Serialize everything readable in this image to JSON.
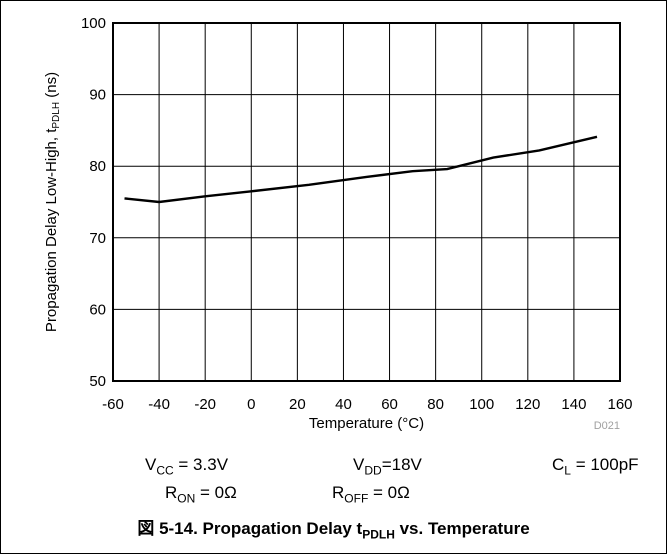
{
  "chart_data": {
    "type": "line",
    "xlabel": "Temperature (°C)",
    "ylabel_main": "Propagation Delay Low-High, t",
    "ylabel_sub": "PDLH",
    "ylabel_unit": " (ns)",
    "xlim": [
      -60,
      160
    ],
    "ylim": [
      50,
      100
    ],
    "xticks": [
      -60,
      -40,
      -20,
      0,
      20,
      40,
      60,
      80,
      100,
      120,
      140,
      160
    ],
    "yticks": [
      50,
      60,
      70,
      80,
      90,
      100
    ],
    "grid": true,
    "watermark": "D021",
    "series": [
      {
        "x": [
          -55,
          -40,
          -20,
          0,
          25,
          50,
          70,
          85,
          105,
          125,
          150
        ],
        "y": [
          75.5,
          75,
          75.8,
          76.5,
          77.4,
          78.5,
          79.3,
          79.6,
          81.2,
          82.2,
          84.1
        ]
      }
    ]
  },
  "conditions": {
    "vcc": {
      "prefix": "V",
      "sub": "CC",
      "suffix": " = 3.3V"
    },
    "vdd": {
      "prefix": "V",
      "sub": "DD",
      "suffix": "=18V"
    },
    "cl": {
      "prefix": "C",
      "sub": "L",
      "suffix": " = 100pF"
    },
    "ron": {
      "prefix": "R",
      "sub": "ON",
      "suffix": " = 0Ω"
    },
    "roff": {
      "prefix": "R",
      "sub": "OFF",
      "suffix": " = 0Ω"
    }
  },
  "caption": {
    "prefix": "図 5-14. Propagation Delay t",
    "sub": "PDLH",
    "suffix": " vs. Temperature"
  },
  "colors": {
    "line": "#000000",
    "grid": "#000000",
    "watermark": "#a0a0a0"
  }
}
